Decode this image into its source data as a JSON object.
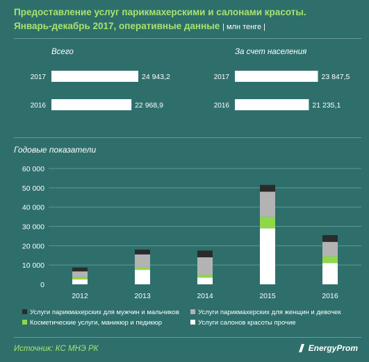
{
  "header": {
    "title_line1": "Предоставление услуг парикмахерскими и салонами красоты.",
    "title_line2": "Январь-декабрь 2017,  оперативные данные",
    "unit": "| млн тенге |"
  },
  "panels": [
    {
      "label": "Всего",
      "rows": [
        {
          "year": "2017",
          "value": 24943.2,
          "value_label": "24 943,2"
        },
        {
          "year": "2016",
          "value": 22968.9,
          "value_label": "22 968,9"
        }
      ]
    },
    {
      "label": "За счет  населения",
      "rows": [
        {
          "year": "2017",
          "value": 23847.5,
          "value_label": "23 847,5"
        },
        {
          "year": "2016",
          "value": 21235.1,
          "value_label": "21 235,1"
        }
      ]
    }
  ],
  "section": {
    "label": "Годовые показатели"
  },
  "chart_data": {
    "type": "bar",
    "stacked": true,
    "categories": [
      "2012",
      "2013",
      "2014",
      "2015",
      "2016"
    ],
    "ylim": [
      0,
      60000
    ],
    "yticks": [
      0,
      10000,
      20000,
      30000,
      40000,
      50000,
      60000
    ],
    "ytick_labels": [
      "0",
      "10 000",
      "20 000",
      "30 000",
      "40 000",
      "50 000",
      "60 000"
    ],
    "grid": true,
    "legend_position": "bottom",
    "series": [
      {
        "name": "Услуги салонов красоты прочие",
        "color": "#ffffff",
        "values": [
          2500,
          7500,
          3500,
          29000,
          11000
        ]
      },
      {
        "name": "Косметические услуги, маникюр и педикюр",
        "color": "#8fd84a",
        "values": [
          1200,
          1500,
          1500,
          6000,
          3500
        ]
      },
      {
        "name": "Услуги парикмахерских для женщин и девочек",
        "color": "#b3b3b3",
        "values": [
          3000,
          6500,
          9000,
          13000,
          7500
        ]
      },
      {
        "name": "Услуги парикмахерских для мужчин и мальчиков",
        "color": "#2b2b2b",
        "values": [
          2000,
          2500,
          3500,
          3500,
          3500
        ]
      }
    ]
  },
  "legend": {
    "items": [
      {
        "label": "Услуги парикмахерских для мужчин и мальчиков",
        "color": "#2b2b2b"
      },
      {
        "label": "Услуги парикмахерских для женщин и девочек",
        "color": "#b3b3b3"
      },
      {
        "label": "Косметические услуги, маникюр и педикюр",
        "color": "#8fd84a"
      },
      {
        "label": "Услуги салонов красоты прочие",
        "color": "#ffffff"
      }
    ]
  },
  "footer": {
    "source": "Источник: КС МНЭ РК",
    "brand": "EnergyProm"
  }
}
